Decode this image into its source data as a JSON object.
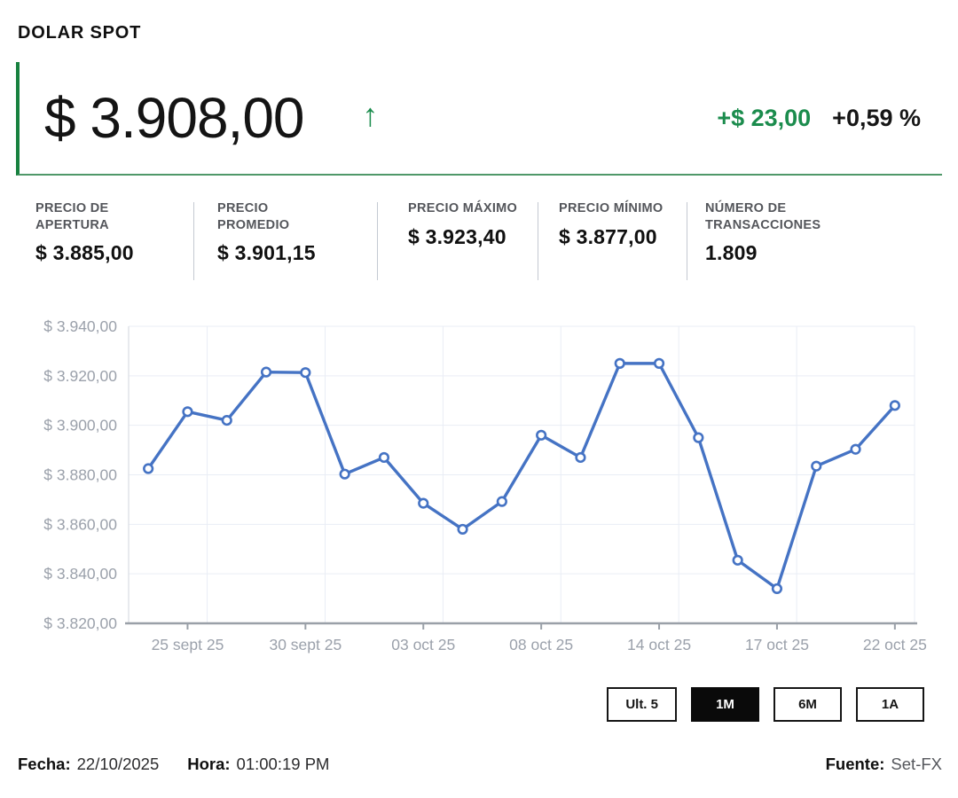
{
  "header": {
    "title": "DOLAR SPOT",
    "price": "$ 3.908,00",
    "direction_icon": "↑",
    "change_abs": "+$ 23,00",
    "change_pct": "+0,59 %",
    "accent_green": "#1b8c4d"
  },
  "stats": [
    {
      "label": "PRECIO DE\nAPERTURA",
      "value": "$ 3.885,00"
    },
    {
      "label": "PRECIO\nPROMEDIO",
      "value": "$ 3.901,15"
    },
    {
      "label": "PRECIO MÁXIMO",
      "value": "$ 3.923,40"
    },
    {
      "label": "PRECIO MÍNIMO",
      "value": "$ 3.877,00"
    },
    {
      "label": "NÚMERO DE\nTRANSACCIONES",
      "value": "1.809"
    }
  ],
  "chart_data": {
    "type": "line",
    "title": "",
    "values": [
      3882.5,
      3905.5,
      3902,
      3921.5,
      3921.3,
      3880.3,
      3887,
      3868.5,
      3858,
      3869.2,
      3896,
      3887,
      3925,
      3925,
      3895,
      3845.5,
      3834,
      3883.5,
      3890.3,
      3908
    ],
    "x_tick_indices": [
      1,
      4,
      7,
      10,
      13,
      16,
      19
    ],
    "x_tick_labels": [
      "25 sept 25",
      "30 sept 25",
      "03 oct 25",
      "08 oct 25",
      "14 oct 25",
      "17 oct 25",
      "22 oct 25"
    ],
    "y_ticks": [
      3820,
      3840,
      3860,
      3880,
      3900,
      3920,
      3940
    ],
    "y_tick_labels": [
      "$ 3.820,00",
      "$ 3.840,00",
      "$ 3.860,00",
      "$ 3.880,00",
      "$ 3.900,00",
      "$ 3.920,00",
      "$ 3.940,00"
    ],
    "ylim": [
      3820,
      3940
    ],
    "line_color": "#4573c4",
    "marker": "hollow-circle",
    "grid": true,
    "grid_color": "#e9edf5",
    "axis_color": "#9aa0a8",
    "y_axis_line_color": "#d9dde3",
    "legend": "none"
  },
  "range_buttons": [
    {
      "label": "Ult. 5",
      "active": false
    },
    {
      "label": "1M",
      "active": true
    },
    {
      "label": "6M",
      "active": false
    },
    {
      "label": "1A",
      "active": false
    }
  ],
  "footer": {
    "fecha_label": "Fecha:",
    "fecha_value": "22/10/2025",
    "hora_label": "Hora:",
    "hora_value": "01:00:19 PM",
    "fuente_label": "Fuente:",
    "fuente_value": "Set-FX"
  }
}
